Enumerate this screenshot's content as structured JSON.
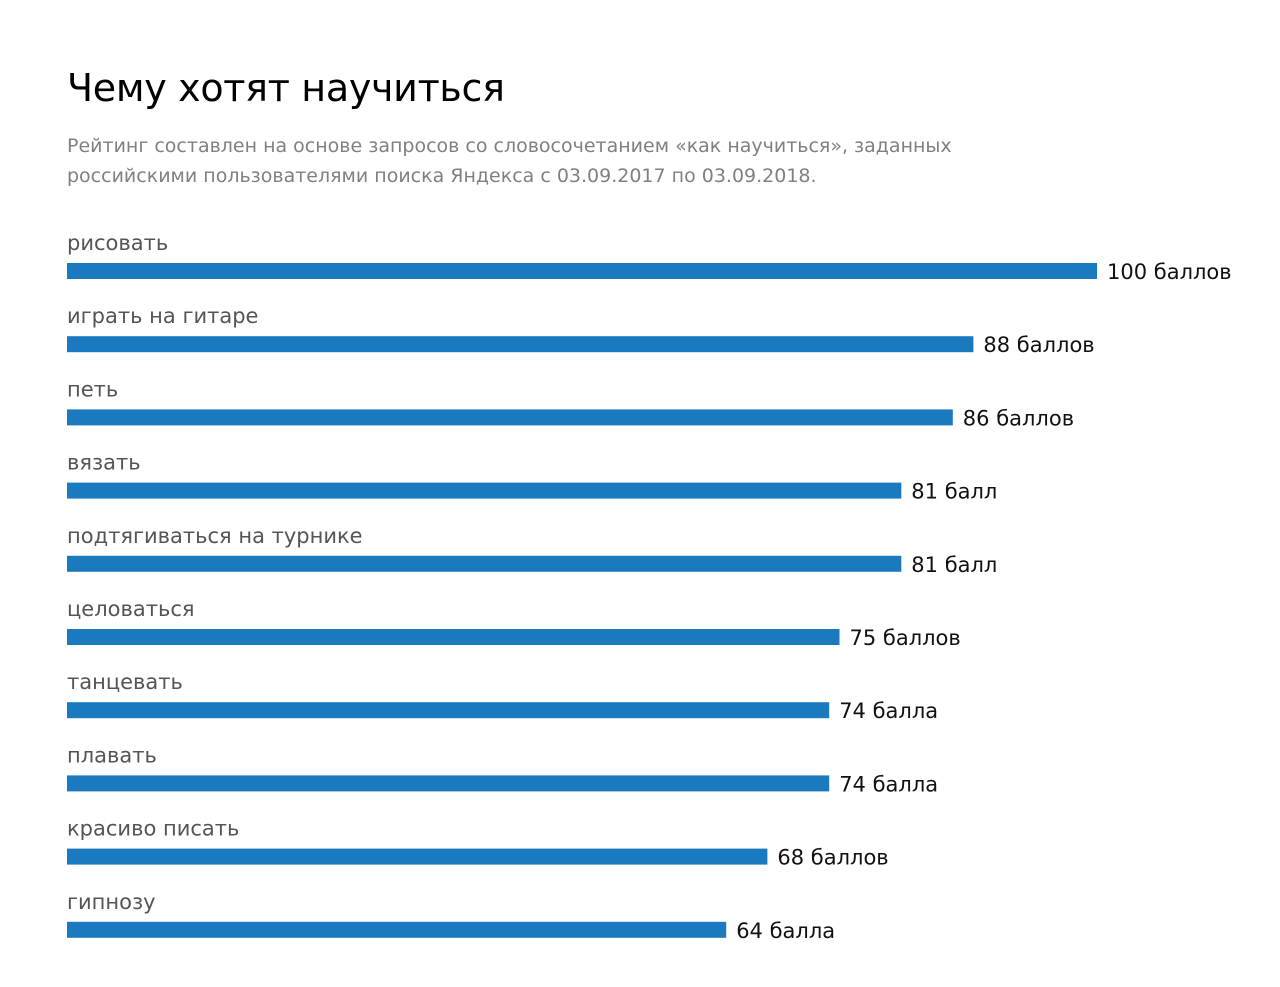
{
  "header": {
    "title": "Чему хотят научиться",
    "subtitle_line1": "Рейтинг составлен на основе запросов со словосочетанием «как научиться», заданных",
    "subtitle_line2": "российскими пользователями поиска Яндекса с 03.09.2017 по 03.09.2018."
  },
  "colors": {
    "bar": "#1b7abf"
  },
  "chart_data": {
    "type": "bar",
    "orientation": "horizontal",
    "title": "Чему хотят научиться",
    "subtitle": "Рейтинг составлен на основе запросов со словосочетанием «как научиться», заданных российскими пользователями поиска Яндекса с 03.09.2017 по 03.09.2018.",
    "xlabel": "",
    "ylabel": "",
    "xlim": [
      0,
      100
    ],
    "grid": false,
    "legend": "none",
    "categories": [
      "рисовать",
      "играть на гитаре",
      "петь",
      "вязать",
      "подтягиваться на турнике",
      "целоваться",
      "танцевать",
      "плавать",
      "красиво писать",
      "гипнозу"
    ],
    "values": [
      100,
      88,
      86,
      81,
      81,
      75,
      74,
      74,
      68,
      64
    ],
    "value_labels": [
      "100 баллов",
      "88 баллов",
      "86 баллов",
      "81 балл",
      "81 балл",
      "75 баллов",
      "74 балла",
      "74 балла",
      "68 баллов",
      "64 балла"
    ]
  }
}
